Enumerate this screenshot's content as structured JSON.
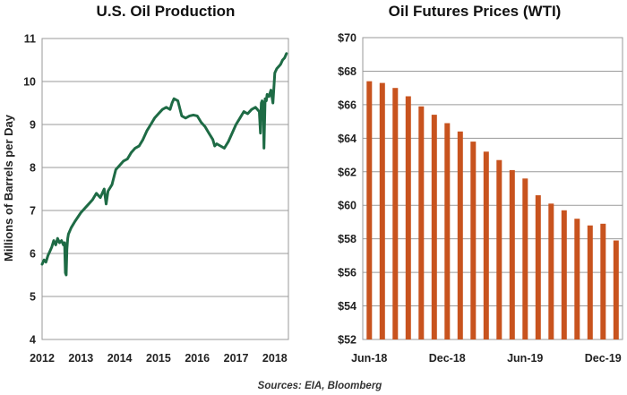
{
  "colors": {
    "line": "#1e6b45",
    "bar": "#c8531e",
    "grid": "#9a9a9a"
  },
  "sources": "Sources: EIA, Bloomberg",
  "chart_data": [
    {
      "type": "line",
      "title": "U.S. Oil Production",
      "xlabel": "",
      "ylabel": "Millions of Barrels per Day",
      "xlim": [
        2012,
        2018.35
      ],
      "ylim": [
        4,
        11
      ],
      "yticks": [
        4,
        5,
        6,
        7,
        8,
        9,
        10,
        11
      ],
      "xticks": [
        2012,
        2013,
        2014,
        2015,
        2016,
        2017,
        2018
      ],
      "series": [
        {
          "name": "U.S. Oil Production",
          "x": [
            2012.0,
            2012.05,
            2012.1,
            2012.15,
            2012.2,
            2012.25,
            2012.3,
            2012.35,
            2012.4,
            2012.45,
            2012.5,
            2012.55,
            2012.58,
            2012.6,
            2012.62,
            2012.64,
            2012.66,
            2012.68,
            2012.75,
            2012.85,
            2013.0,
            2013.1,
            2013.2,
            2013.3,
            2013.4,
            2013.5,
            2013.6,
            2013.65,
            2013.7,
            2013.8,
            2013.9,
            2014.0,
            2014.1,
            2014.2,
            2014.3,
            2014.4,
            2014.5,
            2014.6,
            2014.7,
            2014.8,
            2014.9,
            2015.0,
            2015.1,
            2015.2,
            2015.3,
            2015.35,
            2015.4,
            2015.5,
            2015.6,
            2015.7,
            2015.8,
            2015.9,
            2016.0,
            2016.1,
            2016.2,
            2016.3,
            2016.4,
            2016.45,
            2016.5,
            2016.6,
            2016.7,
            2016.8,
            2016.9,
            2017.0,
            2017.1,
            2017.2,
            2017.3,
            2017.4,
            2017.5,
            2017.6,
            2017.63,
            2017.65,
            2017.67,
            2017.7,
            2017.72,
            2017.75,
            2017.78,
            2017.8,
            2017.85,
            2017.9,
            2017.95,
            2018.0,
            2018.05,
            2018.1,
            2018.15,
            2018.2,
            2018.25,
            2018.3
          ],
          "values": [
            5.75,
            5.85,
            5.8,
            5.95,
            6.05,
            6.15,
            6.3,
            6.2,
            6.35,
            6.25,
            6.3,
            6.2,
            6.25,
            5.55,
            5.5,
            6.1,
            6.35,
            6.45,
            6.6,
            6.75,
            6.95,
            7.05,
            7.15,
            7.25,
            7.4,
            7.3,
            7.5,
            7.15,
            7.45,
            7.6,
            7.95,
            8.05,
            8.15,
            8.2,
            8.35,
            8.45,
            8.5,
            8.65,
            8.85,
            9.0,
            9.15,
            9.25,
            9.35,
            9.4,
            9.35,
            9.5,
            9.6,
            9.55,
            9.2,
            9.15,
            9.2,
            9.22,
            9.2,
            9.05,
            8.95,
            8.8,
            8.65,
            8.5,
            8.55,
            8.5,
            8.45,
            8.6,
            8.8,
            9.0,
            9.15,
            9.3,
            9.25,
            9.35,
            9.4,
            9.3,
            8.8,
            9.5,
            9.55,
            9.5,
            8.45,
            9.6,
            9.55,
            9.7,
            9.65,
            9.8,
            9.5,
            10.2,
            10.3,
            10.35,
            10.4,
            10.5,
            10.55,
            10.65
          ]
        }
      ]
    },
    {
      "type": "bar",
      "title": "Oil Futures Prices (WTI)",
      "xlabel": "",
      "ylabel": "",
      "ylim": [
        52,
        70
      ],
      "yticks": [
        "$52",
        "$54",
        "$56",
        "$58",
        "$60",
        "$62",
        "$64",
        "$66",
        "$68",
        "$70"
      ],
      "ytick_values": [
        52,
        54,
        56,
        58,
        60,
        62,
        64,
        66,
        68,
        70
      ],
      "x_tick_labels": [
        {
          "label": "Jun-18",
          "index": 0
        },
        {
          "label": "Dec-18",
          "index": 6
        },
        {
          "label": "Jun-19",
          "index": 12
        },
        {
          "label": "Dec-19",
          "index": 18
        }
      ],
      "values": [
        67.4,
        67.3,
        67.0,
        66.5,
        65.9,
        65.4,
        64.9,
        64.4,
        63.8,
        63.2,
        62.7,
        62.1,
        61.6,
        60.6,
        60.1,
        59.7,
        59.2,
        58.8,
        58.9,
        57.9
      ]
    }
  ]
}
